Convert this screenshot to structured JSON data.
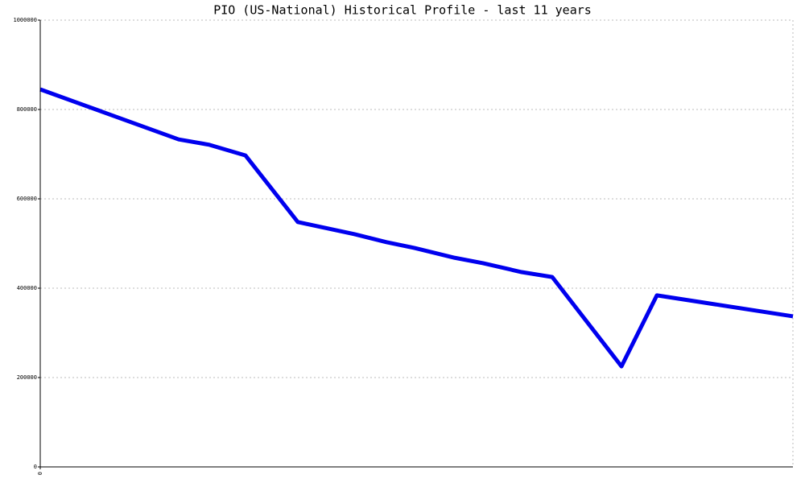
{
  "chart_data": {
    "type": "line",
    "title": "PIO (US-National) Historical Profile - last 11 years",
    "x": [
      0,
      172,
      210,
      255,
      320,
      390,
      430,
      465,
      515,
      550,
      598,
      636,
      722,
      766,
      935
    ],
    "series": [
      {
        "color": "#0000ee",
        "values": [
          845000,
          733000,
          721000,
          697000,
          548000,
          521000,
          503000,
          490000,
          468000,
          456000,
          436000,
          425000,
          225000,
          384000,
          337000
        ]
      }
    ],
    "xlim": [
      0,
      935
    ],
    "xticks": [
      0
    ],
    "ylim": [
      0,
      1000000
    ],
    "yticks": [
      0,
      200000,
      400000,
      600000,
      800000,
      1000000
    ],
    "grid": true
  }
}
